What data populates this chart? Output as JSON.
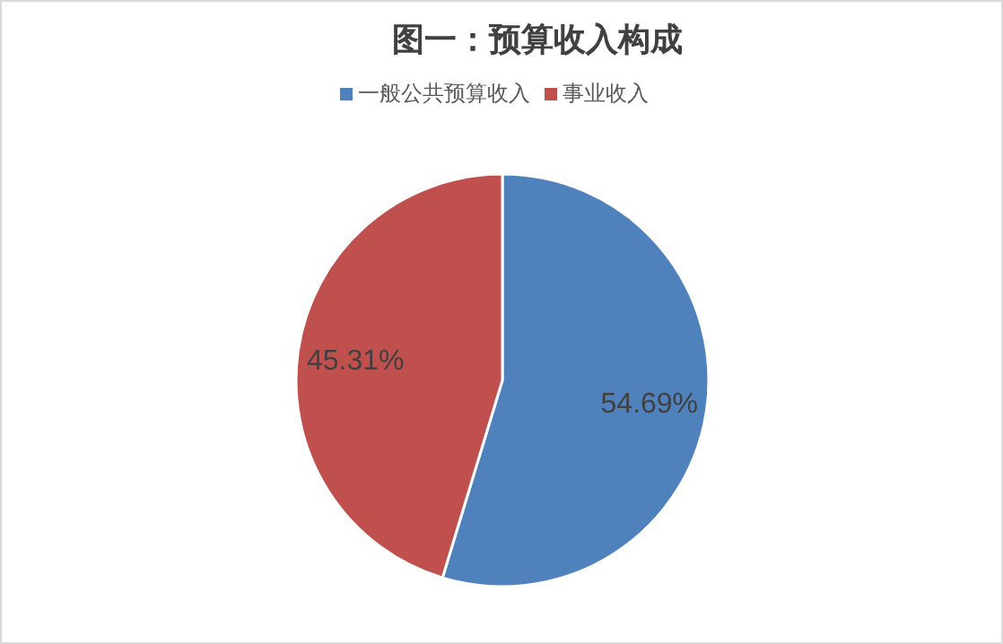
{
  "chart_data": {
    "type": "pie",
    "title": "图一：预算收入构成",
    "categories": [
      "一般公共预算收入",
      "事业收入"
    ],
    "values": [
      54.69,
      45.31
    ],
    "colors": [
      "#4f81bd",
      "#c0504d"
    ],
    "value_labels": [
      "54.69%",
      "45.31%"
    ],
    "legend": "top"
  }
}
